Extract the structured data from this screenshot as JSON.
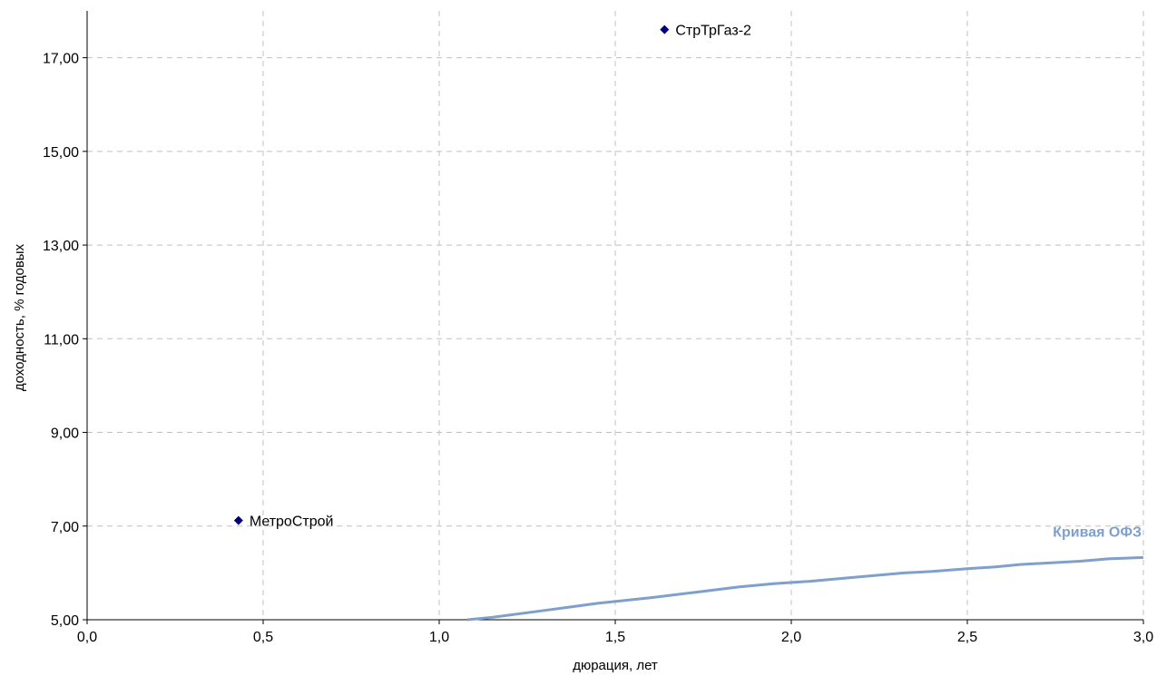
{
  "chart_data": {
    "type": "scatter",
    "xlabel": "дюрация, лет",
    "ylabel": "доходность, % годовых",
    "xlim": [
      0.0,
      3.0
    ],
    "ylim": [
      5.0,
      18.0
    ],
    "x_ticks": [
      "0,0",
      "0,5",
      "1,0",
      "1,5",
      "2,0",
      "2,5",
      "3,0"
    ],
    "y_ticks": [
      "5,00",
      "7,00",
      "9,00",
      "11,00",
      "13,00",
      "15,00",
      "17,00"
    ],
    "grid": true,
    "points": [
      {
        "label": "МетроСтрой",
        "x": 0.43,
        "y": 7.12
      },
      {
        "label": "СтрТрГаз-2",
        "x": 1.64,
        "y": 17.6
      }
    ],
    "curve": {
      "name": "Кривая ОФЗ",
      "color": "#7f9fcc",
      "x": [
        1.08,
        1.15,
        1.3,
        1.45,
        1.6,
        1.72,
        1.85,
        1.95,
        2.05,
        2.2,
        2.32,
        2.4,
        2.5,
        2.58,
        2.65,
        2.75,
        2.82,
        2.9,
        3.0
      ],
      "y": [
        5.0,
        5.05,
        5.2,
        5.35,
        5.47,
        5.58,
        5.7,
        5.77,
        5.82,
        5.92,
        6.0,
        6.03,
        6.09,
        6.13,
        6.18,
        6.22,
        6.25,
        6.3,
        6.33
      ]
    },
    "point_color": "#00007f",
    "grid_color": "#c0c0c0"
  }
}
